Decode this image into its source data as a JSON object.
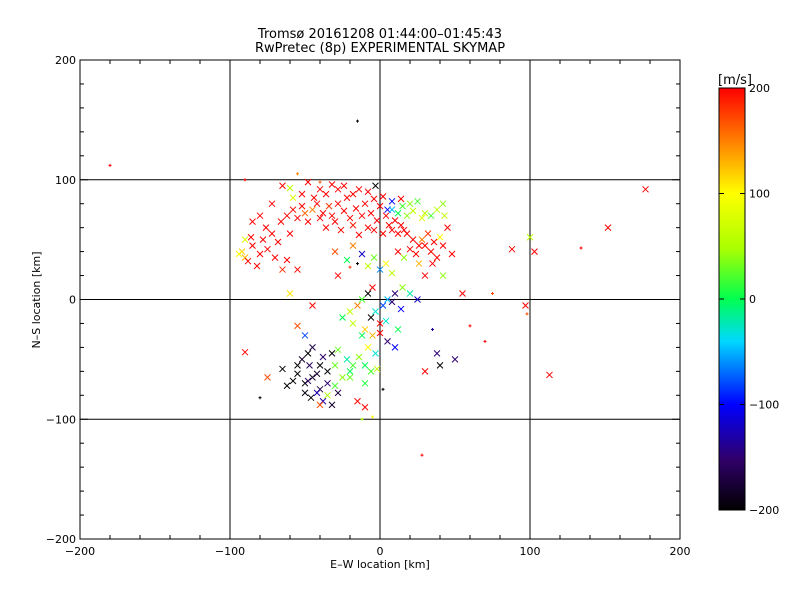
{
  "chart_data": {
    "type": "scatter",
    "title": "Tromsø 20161208 01:44:00–01:45:43",
    "subtitle": "RwPretec (8p) EXPERIMENTAL SKYMAP",
    "xlabel": "E–W location [km]",
    "ylabel": "N–S location [km]",
    "xlim": [
      -200,
      200
    ],
    "ylim": [
      -200,
      200
    ],
    "xticks": [
      -200,
      -100,
      0,
      100,
      200
    ],
    "yticks": [
      -200,
      -100,
      0,
      100,
      200
    ],
    "grid": true,
    "colorbar": {
      "label": "[m/s]",
      "min": -200,
      "max": 200,
      "ticks": [
        200,
        100,
        0,
        -100,
        -200
      ],
      "colormap": "rainbow-black-to-red"
    },
    "markers": [
      "x",
      "+"
    ],
    "points": [
      [
        -180,
        112,
        200,
        "+"
      ],
      [
        -15,
        149,
        -200,
        "+"
      ],
      [
        177,
        92,
        200,
        "x"
      ],
      [
        152,
        60,
        200,
        "x"
      ],
      [
        134,
        43,
        200,
        "+"
      ],
      [
        100,
        52,
        60,
        "x"
      ],
      [
        103,
        40,
        200,
        "x"
      ],
      [
        97,
        -5,
        200,
        "x"
      ],
      [
        113,
        -63,
        200,
        "x"
      ],
      [
        98,
        -12,
        170,
        "+"
      ],
      [
        88,
        42,
        200,
        "x"
      ],
      [
        75,
        5,
        170,
        "+"
      ],
      [
        55,
        5,
        200,
        "x"
      ],
      [
        50,
        -50,
        -150,
        "x"
      ],
      [
        28,
        -130,
        200,
        "+"
      ],
      [
        -50,
        -70,
        -200,
        "x"
      ],
      [
        -45,
        -65,
        -180,
        "x"
      ],
      [
        -40,
        -75,
        -170,
        "x"
      ],
      [
        -55,
        -55,
        -200,
        "x"
      ],
      [
        -47,
        -55,
        -160,
        "x"
      ],
      [
        -30,
        -72,
        20,
        "x"
      ],
      [
        -35,
        -80,
        50,
        "x"
      ],
      [
        -20,
        -65,
        30,
        "x"
      ],
      [
        -15,
        -85,
        200,
        "x"
      ],
      [
        -10,
        -70,
        10,
        "x"
      ],
      [
        -5,
        -30,
        130,
        "x"
      ],
      [
        -8,
        -40,
        100,
        "x"
      ],
      [
        -12,
        -30,
        0,
        "x"
      ],
      [
        -3,
        -45,
        -30,
        "x"
      ],
      [
        0,
        -20,
        200,
        "x"
      ],
      [
        5,
        -35,
        -150,
        "x"
      ],
      [
        10,
        -40,
        -100,
        "x"
      ],
      [
        -90,
        -44,
        200,
        "x"
      ],
      [
        -75,
        -65,
        170,
        "x"
      ],
      [
        -80,
        -82,
        -200,
        "+"
      ],
      [
        -45,
        -5,
        200,
        "x"
      ],
      [
        -55,
        -22,
        170,
        "x"
      ],
      [
        -50,
        -30,
        -80,
        "x"
      ],
      [
        -55,
        25,
        200,
        "x"
      ],
      [
        -60,
        5,
        110,
        "x"
      ],
      [
        -65,
        25,
        180,
        "x"
      ],
      [
        -62,
        33,
        200,
        "x"
      ],
      [
        30,
        -60,
        200,
        "x"
      ],
      [
        40,
        -55,
        -200,
        "x"
      ],
      [
        38,
        -45,
        -150,
        "x"
      ],
      [
        35,
        -25,
        -130,
        "+"
      ],
      [
        60,
        -22,
        200,
        "+"
      ],
      [
        70,
        -35,
        200,
        "+"
      ],
      [
        -20,
        27,
        180,
        "+"
      ],
      [
        -15,
        30,
        -200,
        "+"
      ],
      [
        -90,
        35,
        130,
        "x"
      ],
      [
        -92,
        40,
        120,
        "x"
      ],
      [
        -94,
        38,
        100,
        "x"
      ],
      [
        -88,
        32,
        200,
        "x"
      ],
      [
        -85,
        45,
        200,
        "x"
      ],
      [
        -80,
        38,
        200,
        "x"
      ],
      [
        -78,
        50,
        200,
        "x"
      ],
      [
        -75,
        42,
        200,
        "x"
      ],
      [
        -72,
        55,
        200,
        "x"
      ],
      [
        -70,
        35,
        200,
        "x"
      ],
      [
        -82,
        28,
        200,
        "x"
      ],
      [
        -86,
        52,
        200,
        "x"
      ],
      [
        -90,
        50,
        80,
        "x"
      ],
      [
        -68,
        48,
        200,
        "x"
      ],
      [
        -66,
        65,
        200,
        "x"
      ],
      [
        -62,
        70,
        200,
        "x"
      ],
      [
        -58,
        75,
        200,
        "x"
      ],
      [
        -55,
        68,
        200,
        "x"
      ],
      [
        -52,
        78,
        200,
        "x"
      ],
      [
        -50,
        72,
        160,
        "x"
      ],
      [
        -48,
        65,
        200,
        "x"
      ],
      [
        -45,
        75,
        150,
        "x"
      ],
      [
        -42,
        80,
        200,
        "x"
      ],
      [
        -40,
        68,
        200,
        "x"
      ],
      [
        -38,
        72,
        200,
        "x"
      ],
      [
        -36,
        60,
        200,
        "x"
      ],
      [
        -34,
        78,
        180,
        "x"
      ],
      [
        -32,
        70,
        200,
        "x"
      ],
      [
        -30,
        65,
        200,
        "x"
      ],
      [
        -28,
        80,
        200,
        "x"
      ],
      [
        -26,
        58,
        200,
        "x"
      ],
      [
        -24,
        74,
        200,
        "x"
      ],
      [
        -22,
        85,
        200,
        "x"
      ],
      [
        -20,
        68,
        200,
        "x"
      ],
      [
        -18,
        62,
        190,
        "x"
      ],
      [
        -16,
        76,
        200,
        "x"
      ],
      [
        -14,
        54,
        200,
        "x"
      ],
      [
        -12,
        70,
        200,
        "x"
      ],
      [
        -10,
        80,
        200,
        "x"
      ],
      [
        -8,
        60,
        200,
        "x"
      ],
      [
        -6,
        72,
        200,
        "x"
      ],
      [
        -4,
        58,
        200,
        "x"
      ],
      [
        -2,
        66,
        200,
        "x"
      ],
      [
        0,
        78,
        200,
        "x"
      ],
      [
        2,
        55,
        200,
        "x"
      ],
      [
        4,
        70,
        200,
        "x"
      ],
      [
        6,
        62,
        200,
        "x"
      ],
      [
        8,
        58,
        200,
        "x"
      ],
      [
        10,
        66,
        200,
        "x"
      ],
      [
        12,
        55,
        200,
        "x"
      ],
      [
        14,
        62,
        200,
        "x"
      ],
      [
        16,
        58,
        200,
        "x"
      ],
      [
        -80,
        70,
        200,
        "x"
      ],
      [
        -76,
        60,
        200,
        "x"
      ],
      [
        -85,
        65,
        200,
        "x"
      ],
      [
        -72,
        80,
        200,
        "x"
      ],
      [
        -60,
        55,
        200,
        "x"
      ],
      [
        -58,
        85,
        80,
        "x"
      ],
      [
        -52,
        88,
        200,
        "x"
      ],
      [
        -44,
        85,
        200,
        "x"
      ],
      [
        -36,
        88,
        200,
        "x"
      ],
      [
        -28,
        92,
        200,
        "x"
      ],
      [
        -24,
        95,
        200,
        "x"
      ],
      [
        -18,
        88,
        200,
        "x"
      ],
      [
        -14,
        92,
        200,
        "x"
      ],
      [
        -8,
        90,
        200,
        "x"
      ],
      [
        -4,
        84,
        200,
        "x"
      ],
      [
        2,
        86,
        200,
        "x"
      ],
      [
        8,
        82,
        -100,
        "x"
      ],
      [
        14,
        84,
        200,
        "x"
      ],
      [
        -65,
        95,
        200,
        "x"
      ],
      [
        -60,
        93,
        60,
        "x"
      ],
      [
        -48,
        98,
        200,
        "x"
      ],
      [
        -40,
        92,
        200,
        "x"
      ],
      [
        -32,
        96,
        200,
        "x"
      ],
      [
        -90,
        100,
        200,
        "+"
      ],
      [
        -55,
        105,
        150,
        "+"
      ],
      [
        -40,
        98,
        170,
        "+"
      ],
      [
        -3,
        95,
        -200,
        "x"
      ],
      [
        5,
        75,
        -100,
        "x"
      ],
      [
        8,
        75,
        -50,
        "x"
      ],
      [
        12,
        72,
        0,
        "x"
      ],
      [
        15,
        78,
        20,
        "x"
      ],
      [
        18,
        70,
        40,
        "x"
      ],
      [
        20,
        80,
        40,
        "x"
      ],
      [
        22,
        74,
        60,
        "x"
      ],
      [
        25,
        82,
        20,
        "x"
      ],
      [
        28,
        68,
        80,
        "x"
      ],
      [
        30,
        72,
        60,
        "x"
      ],
      [
        34,
        70,
        20,
        "x"
      ],
      [
        38,
        75,
        60,
        "x"
      ],
      [
        42,
        80,
        40,
        "x"
      ],
      [
        43,
        70,
        60,
        "x"
      ],
      [
        -12,
        38,
        -120,
        "x"
      ],
      [
        -22,
        33,
        0,
        "x"
      ],
      [
        -18,
        45,
        150,
        "x"
      ],
      [
        -28,
        20,
        200,
        "x"
      ],
      [
        -30,
        40,
        170,
        "x"
      ],
      [
        -8,
        28,
        60,
        "x"
      ],
      [
        -4,
        35,
        30,
        "x"
      ],
      [
        0,
        25,
        -60,
        "x"
      ],
      [
        4,
        30,
        100,
        "x"
      ],
      [
        8,
        22,
        60,
        "x"
      ],
      [
        12,
        40,
        200,
        "x"
      ],
      [
        16,
        35,
        40,
        "x"
      ],
      [
        20,
        42,
        200,
        "x"
      ],
      [
        24,
        38,
        200,
        "x"
      ],
      [
        26,
        45,
        200,
        "x"
      ],
      [
        28,
        50,
        150,
        "x"
      ],
      [
        30,
        45,
        200,
        "x"
      ],
      [
        32,
        55,
        180,
        "x"
      ],
      [
        34,
        40,
        200,
        "x"
      ],
      [
        36,
        48,
        200,
        "x"
      ],
      [
        38,
        35,
        200,
        "x"
      ],
      [
        40,
        52,
        100,
        "x"
      ],
      [
        42,
        45,
        200,
        "x"
      ],
      [
        22,
        50,
        200,
        "x"
      ],
      [
        18,
        55,
        200,
        "x"
      ],
      [
        26,
        30,
        130,
        "x"
      ],
      [
        35,
        30,
        200,
        "x"
      ],
      [
        45,
        60,
        200,
        "x"
      ],
      [
        48,
        38,
        200,
        "x"
      ],
      [
        42,
        20,
        40,
        "x"
      ],
      [
        30,
        20,
        200,
        "x"
      ],
      [
        15,
        10,
        40,
        "x"
      ],
      [
        20,
        5,
        -20,
        "x"
      ],
      [
        25,
        0,
        -120,
        "x"
      ],
      [
        10,
        5,
        -150,
        "x"
      ],
      [
        -5,
        10,
        200,
        "x"
      ],
      [
        -8,
        5,
        -200,
        "x"
      ],
      [
        -12,
        0,
        20,
        "x"
      ],
      [
        -15,
        -5,
        150,
        "x"
      ],
      [
        -20,
        -10,
        60,
        "x"
      ],
      [
        -3,
        -10,
        -30,
        "x"
      ],
      [
        2,
        -5,
        -80,
        "x"
      ],
      [
        5,
        0,
        -50,
        "x"
      ],
      [
        8,
        -2,
        -150,
        "x"
      ],
      [
        14,
        -8,
        -100,
        "x"
      ],
      [
        -25,
        -15,
        0,
        "x"
      ],
      [
        -18,
        -20,
        60,
        "x"
      ],
      [
        -10,
        -25,
        120,
        "x"
      ],
      [
        -6,
        -15,
        -200,
        "x"
      ],
      [
        0,
        -28,
        200,
        "x"
      ],
      [
        4,
        -18,
        -30,
        "x"
      ],
      [
        12,
        -25,
        0,
        "x"
      ],
      [
        -28,
        -42,
        30,
        "x"
      ],
      [
        -22,
        -50,
        -20,
        "x"
      ],
      [
        -18,
        -55,
        20,
        "x"
      ],
      [
        -14,
        -48,
        40,
        "x"
      ],
      [
        -10,
        -55,
        0,
        "x"
      ],
      [
        -6,
        -60,
        20,
        "x"
      ],
      [
        -2,
        -58,
        60,
        "x"
      ],
      [
        -20,
        -60,
        0,
        "x"
      ],
      [
        -25,
        -65,
        40,
        "x"
      ],
      [
        -30,
        -55,
        30,
        "x"
      ],
      [
        -35,
        -60,
        -200,
        "x"
      ],
      [
        -40,
        -55,
        -200,
        "x"
      ],
      [
        -42,
        -62,
        -180,
        "x"
      ],
      [
        -38,
        -48,
        -150,
        "x"
      ],
      [
        -32,
        -45,
        -200,
        "x"
      ],
      [
        -48,
        -45,
        -200,
        "x"
      ],
      [
        -52,
        -50,
        -180,
        "x"
      ],
      [
        -45,
        -40,
        -170,
        "x"
      ],
      [
        -35,
        -70,
        -150,
        "x"
      ],
      [
        -28,
        -78,
        -170,
        "x"
      ],
      [
        -42,
        -78,
        -130,
        "x"
      ],
      [
        -38,
        -85,
        -130,
        "x"
      ],
      [
        -32,
        -88,
        -180,
        "x"
      ],
      [
        -48,
        -68,
        -160,
        "x"
      ],
      [
        -55,
        -62,
        -200,
        "x"
      ],
      [
        -40,
        -88,
        170,
        "x"
      ],
      [
        -10,
        -90,
        200,
        "x"
      ],
      [
        -5,
        -98,
        100,
        "+"
      ],
      [
        -12,
        -100,
        50,
        "+"
      ],
      [
        2,
        -75,
        -200,
        "+"
      ],
      [
        -58,
        -68,
        -200,
        "x"
      ],
      [
        -62,
        -72,
        -200,
        "x"
      ],
      [
        -65,
        -58,
        -200,
        "x"
      ],
      [
        -46,
        -82,
        -200,
        "x"
      ],
      [
        -50,
        -78,
        -190,
        "x"
      ]
    ]
  }
}
